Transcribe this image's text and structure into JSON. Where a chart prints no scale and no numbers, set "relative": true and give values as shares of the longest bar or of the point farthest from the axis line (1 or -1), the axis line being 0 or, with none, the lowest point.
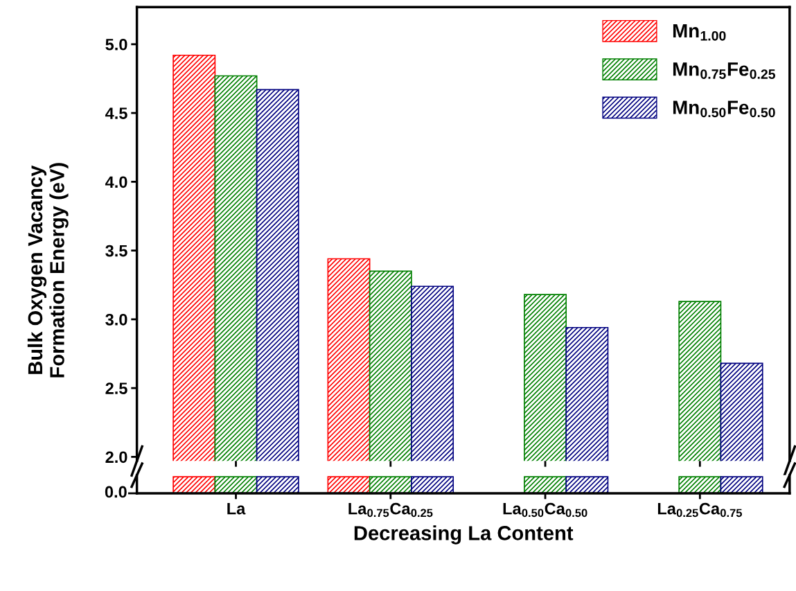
{
  "chart_data": [
    {
      "type": "bar",
      "ylabel": "Bulk Oxygen Vacancy\nFormation Energy (eV)",
      "categories": [
        null,
        null,
        null,
        null
      ],
      "series": [
        {
          "name": "Mn$_{1.00}$",
          "color": "#ff0000",
          "values": [
            4.92,
            3.44,
            null,
            null
          ]
        },
        {
          "name": "Mn$_{0.75}$Fe$_{0.25}$",
          "color": "#008000",
          "values": [
            4.77,
            3.35,
            3.18,
            3.13
          ]
        },
        {
          "name": "Mn$_{0.50}$Fe$_{0.50}$",
          "color": "#000080",
          "values": [
            4.67,
            3.24,
            2.94,
            2.68
          ]
        }
      ],
      "ylim": [
        1.97,
        5.27
      ],
      "yticks": [
        {
          "value": 2,
          "label": "2.0"
        },
        2.5,
        {
          "value": 3,
          "label": "3.0"
        },
        3.5,
        {
          "value": 4,
          "label": "4.0"
        },
        4.5,
        {
          "value": 5,
          "label": "5.0"
        }
      ],
      "tick_labels": "y",
      "legend": "top right",
      "grid": false
    },
    {
      "type": "bar",
      "xlabel": "Decreasing La Content",
      "categories": [
        "La",
        "La$_{0.75}$Ca$_{0.25}$",
        "La$_{0.50}$Ca$_{0.50}$",
        "La$_{0.25}$Ca$_{0.75}$"
      ],
      "relative": true,
      "series": [
        {
          "color": "#ff0000",
          "values": [
            1,
            1,
            null,
            null
          ]
        },
        {
          "color": "#008000",
          "values": [
            1,
            1,
            1,
            1
          ]
        },
        {
          "color": "#000080",
          "values": [
            1,
            1,
            1,
            1
          ]
        }
      ],
      "annotations": [
        "0.0"
      ],
      "tick_labels": "x",
      "grid": false
    }
  ]
}
